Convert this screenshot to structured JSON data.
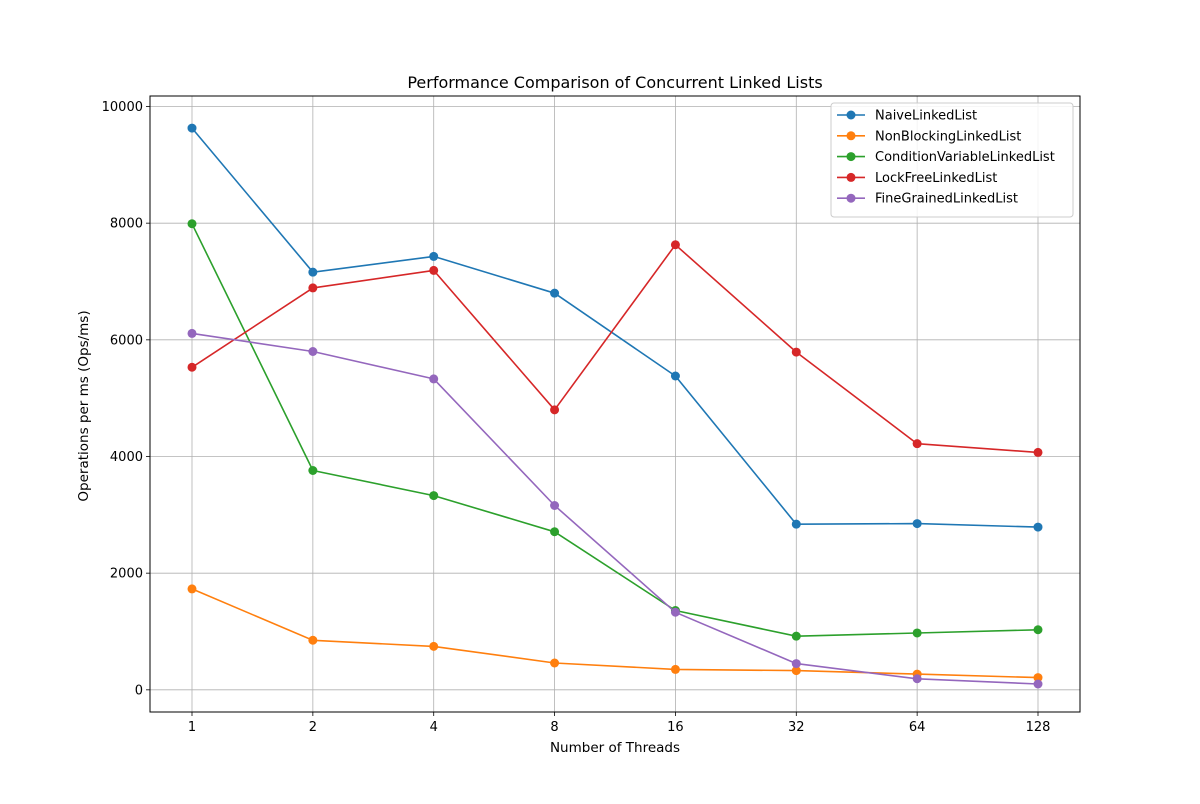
{
  "chart_data": {
    "type": "line",
    "title": "Performance Comparison of Concurrent Linked Lists",
    "xlabel": "Number of Threads",
    "ylabel": "Operations per ms (Ops/ms)",
    "x_scale": "log2",
    "categories": [
      "1",
      "2",
      "4",
      "8",
      "16",
      "32",
      "64",
      "128"
    ],
    "x": [
      1,
      2,
      4,
      8,
      16,
      32,
      64,
      128
    ],
    "ylim": [
      -380,
      10180
    ],
    "yticks": [
      0,
      2000,
      4000,
      6000,
      8000,
      10000
    ],
    "grid": true,
    "legend_position": "top-right",
    "marker": "circle",
    "series": [
      {
        "name": "NaiveLinkedList",
        "color": "#1f77b4",
        "values": [
          9630,
          7160,
          7430,
          6800,
          5380,
          2840,
          2850,
          2790
        ]
      },
      {
        "name": "NonBlockingLinkedList",
        "color": "#ff7f0e",
        "values": [
          1730,
          850,
          745,
          460,
          350,
          330,
          270,
          210
        ]
      },
      {
        "name": "ConditionVariableLinkedList",
        "color": "#2ca02c",
        "values": [
          7990,
          3760,
          3330,
          2710,
          1360,
          920,
          975,
          1030
        ]
      },
      {
        "name": "LockFreeLinkedList",
        "color": "#d62728",
        "values": [
          5530,
          6890,
          7190,
          4800,
          7630,
          5790,
          4220,
          4070
        ]
      },
      {
        "name": "FineGrainedLinkedList",
        "color": "#9467bd",
        "values": [
          6110,
          5800,
          5330,
          3160,
          1330,
          450,
          190,
          100
        ]
      }
    ]
  }
}
